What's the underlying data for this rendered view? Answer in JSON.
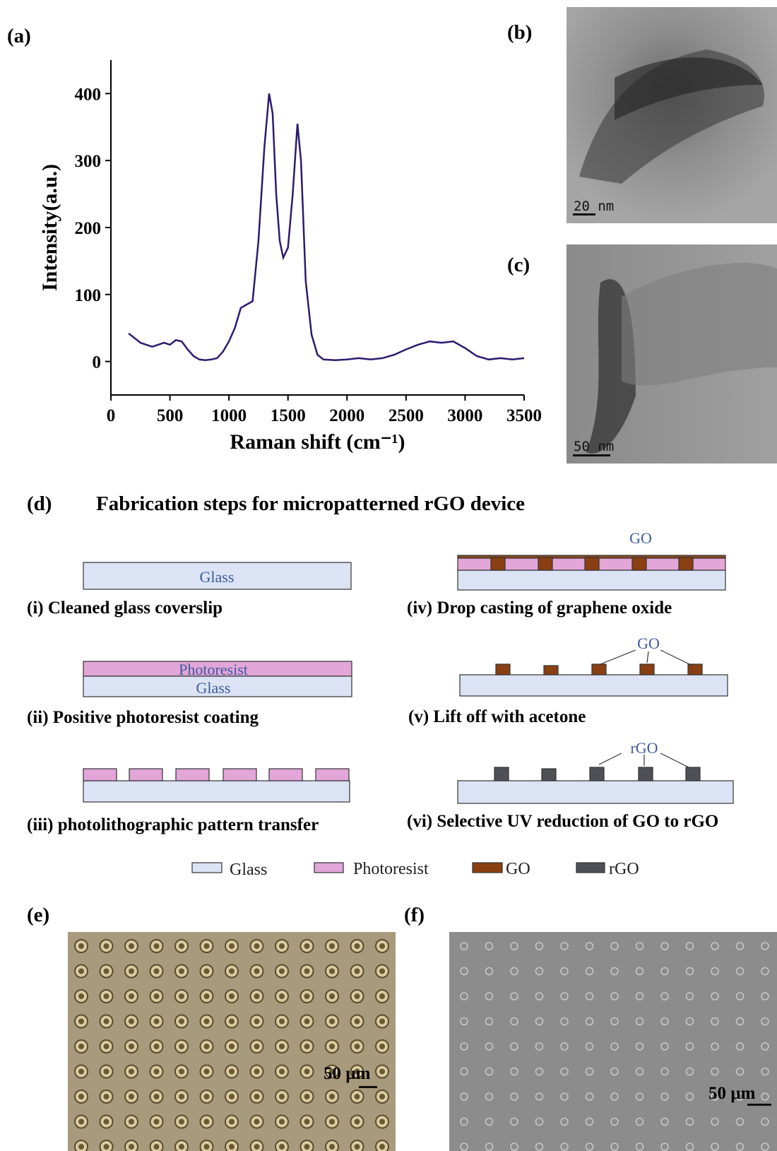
{
  "panels": {
    "a": "(a)",
    "b": "(b)",
    "c": "(c)",
    "d": "(d)",
    "e": "(e)",
    "f": "(f)"
  },
  "chart_data": {
    "type": "line",
    "xlabel": "Raman shift (cm⁻¹)",
    "ylabel": "Intensity(a.u.)",
    "color": "#2e1a6e",
    "x": [
      150,
      200,
      250,
      300,
      350,
      400,
      450,
      500,
      550,
      600,
      650,
      700,
      750,
      800,
      850,
      900,
      950,
      1000,
      1050,
      1100,
      1150,
      1200,
      1250,
      1300,
      1340,
      1370,
      1400,
      1430,
      1460,
      1500,
      1540,
      1580,
      1610,
      1650,
      1700,
      1750,
      1800,
      1900,
      2000,
      2100,
      2200,
      2300,
      2400,
      2500,
      2600,
      2700,
      2800,
      2900,
      3000,
      3100,
      3200,
      3300,
      3400,
      3500
    ],
    "values": [
      42,
      35,
      28,
      25,
      22,
      25,
      28,
      25,
      32,
      30,
      18,
      8,
      3,
      2,
      3,
      5,
      15,
      30,
      50,
      80,
      85,
      90,
      180,
      320,
      400,
      370,
      250,
      180,
      155,
      170,
      250,
      355,
      300,
      120,
      40,
      10,
      3,
      2,
      3,
      5,
      3,
      5,
      10,
      18,
      25,
      30,
      28,
      30,
      20,
      8,
      3,
      5,
      3,
      5
    ],
    "xlim": [
      0,
      3500
    ],
    "ylim": [
      -50,
      450
    ],
    "xticks": [
      0,
      500,
      1000,
      1500,
      2000,
      2500,
      3000,
      3500
    ],
    "yticks": [
      0,
      100,
      200,
      300,
      400
    ]
  },
  "scale_bars": {
    "b": "20 nm",
    "c": "50 nm",
    "e": "50 µm",
    "f": "50 µm"
  },
  "diagram": {
    "title": "Fabrication steps for micropatterned rGO device",
    "steps": [
      {
        "caption": "(i)  Cleaned glass coverslip",
        "labels": [
          "Glass"
        ]
      },
      {
        "caption": "(ii) Positive photoresist coating",
        "labels": [
          "Photoresist",
          "Glass"
        ]
      },
      {
        "caption": "(iii) photolithographic pattern transfer",
        "labels": []
      },
      {
        "caption": "(iv) Drop casting of graphene oxide",
        "labels": [
          "GO"
        ]
      },
      {
        "caption": "(v) Lift off with acetone",
        "labels": [
          "GO"
        ]
      },
      {
        "caption": "(vi) Selective UV reduction of GO to rGO",
        "labels": [
          "rGO"
        ]
      }
    ],
    "legend": [
      "Glass",
      "Photoresist",
      "GO",
      "rGO"
    ]
  }
}
